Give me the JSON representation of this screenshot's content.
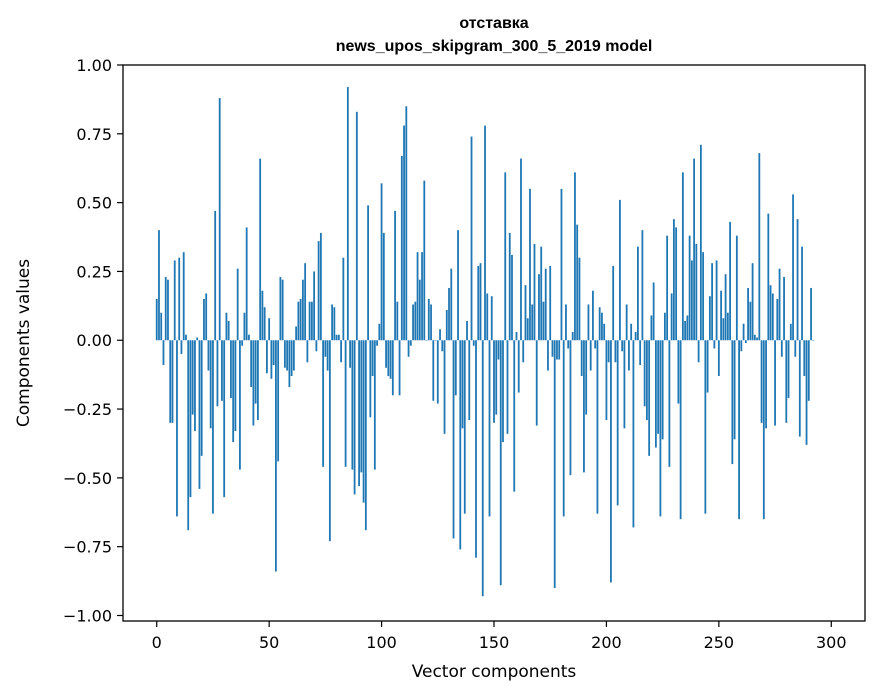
{
  "chart_data": {
    "type": "bar",
    "title": "отставка",
    "subtitle": "news_upos_skipgram_300_5_2019 model",
    "xlabel": "Vector components",
    "ylabel": "Components values",
    "xlim": [
      -15,
      315
    ],
    "ylim": [
      -1.02,
      1.0
    ],
    "xticks": [
      {
        "value": 0,
        "label": "0"
      },
      {
        "value": 50,
        "label": "50"
      },
      {
        "value": 100,
        "label": "100"
      },
      {
        "value": 150,
        "label": "150"
      },
      {
        "value": 200,
        "label": "200"
      },
      {
        "value": 250,
        "label": "250"
      },
      {
        "value": 300,
        "label": "300"
      }
    ],
    "yticks": [
      {
        "value": 1.0,
        "label": "1.00"
      },
      {
        "value": 0.75,
        "label": "0.75"
      },
      {
        "value": 0.5,
        "label": "0.50"
      },
      {
        "value": 0.25,
        "label": "0.25"
      },
      {
        "value": 0.0,
        "label": "0.00"
      },
      {
        "value": -0.25,
        "label": "−0.25"
      },
      {
        "value": -0.5,
        "label": "−0.50"
      },
      {
        "value": -0.75,
        "label": "−0.75"
      },
      {
        "value": -1.0,
        "label": "−1.00"
      }
    ],
    "grid": false,
    "color": "#1f77b4",
    "values": [
      0.15,
      0.4,
      0.1,
      -0.09,
      0.23,
      0.22,
      -0.3,
      -0.3,
      0.29,
      -0.64,
      0.3,
      -0.05,
      0.32,
      0.02,
      -0.69,
      -0.57,
      -0.27,
      -0.33,
      0.01,
      -0.54,
      -0.42,
      0.15,
      0.17,
      -0.11,
      -0.32,
      -0.63,
      0.47,
      -0.24,
      0.88,
      -0.22,
      -0.57,
      0.1,
      0.07,
      -0.21,
      -0.37,
      -0.33,
      0.26,
      -0.47,
      -0.02,
      0.1,
      0.41,
      0.02,
      -0.17,
      -0.31,
      -0.23,
      -0.29,
      0.66,
      0.18,
      0.12,
      -0.12,
      0.08,
      -0.14,
      -0.09,
      -0.84,
      -0.44,
      0.23,
      0.22,
      -0.1,
      -0.11,
      -0.17,
      -0.13,
      -0.11,
      0.05,
      0.14,
      0.15,
      0.22,
      0.28,
      -0.08,
      0.14,
      0.14,
      0.25,
      -0.04,
      0.36,
      0.39,
      -0.46,
      -0.06,
      -0.11,
      -0.73,
      0.13,
      0.12,
      0.02,
      0.02,
      -0.08,
      0.3,
      -0.46,
      0.92,
      -0.1,
      -0.47,
      -0.56,
      0.83,
      -0.53,
      -0.48,
      -0.59,
      -0.69,
      0.49,
      -0.28,
      -0.13,
      -0.47,
      -0.02,
      0.06,
      0.57,
      0.39,
      -0.1,
      -0.13,
      -0.14,
      -0.2,
      0.47,
      0.14,
      -0.2,
      0.67,
      0.78,
      0.85,
      -0.06,
      -0.02,
      0.13,
      0.14,
      0.32,
      0.22,
      0.32,
      0.58,
      0.0,
      0.15,
      0.13,
      -0.22,
      0.0,
      -0.23,
      0.04,
      -0.04,
      -0.34,
      0.11,
      0.19,
      0.26,
      -0.72,
      -0.2,
      0.4,
      -0.76,
      -0.32,
      -0.63,
      0.07,
      -0.29,
      0.74,
      -0.02,
      -0.79,
      0.27,
      0.28,
      -0.93,
      0.78,
      0.17,
      -0.64,
      0.16,
      -0.3,
      -0.27,
      -0.07,
      -0.89,
      -0.37,
      0.61,
      -0.34,
      0.39,
      0.31,
      -0.55,
      0.03,
      -0.19,
      0.66,
      -0.08,
      0.2,
      0.08,
      0.55,
      0.13,
      0.35,
      -0.31,
      0.24,
      0.34,
      0.14,
      0.26,
      -0.11,
      0.27,
      -0.06,
      -0.9,
      -0.07,
      -0.07,
      0.55,
      -0.64,
      0.13,
      -0.03,
      -0.49,
      0.03,
      0.61,
      0.42,
      0.3,
      -0.13,
      -0.48,
      -0.27,
      0.13,
      -0.11,
      0.18,
      -0.03,
      -0.63,
      0.12,
      0.1,
      0.06,
      -0.29,
      -0.08,
      -0.88,
      0.27,
      -0.08,
      -0.6,
      0.51,
      -0.04,
      -0.32,
      0.13,
      -0.11,
      0.06,
      -0.68,
      0.03,
      0.34,
      -0.09,
      0.4,
      -0.24,
      -0.29,
      -0.42,
      0.09,
      0.21,
      -0.39,
      -0.34,
      -0.64,
      -0.36,
      0.1,
      0.38,
      -0.46,
      0.17,
      0.44,
      0.41,
      -0.23,
      -0.65,
      0.61,
      0.07,
      0.09,
      0.38,
      0.29,
      0.66,
      0.35,
      -0.08,
      0.71,
      0.32,
      -0.63,
      -0.19,
      0.16,
      0.28,
      -0.03,
      0.29,
      -0.13,
      0.18,
      0.08,
      0.24,
      0.1,
      0.43,
      -0.45,
      -0.36,
      0.38,
      -0.65,
      -0.04,
      0.06,
      -0.01,
      0.19,
      0.14,
      0.28,
      0.02,
      0.01,
      0.68,
      -0.3,
      -0.65,
      -0.32,
      0.46,
      0.2,
      0.17,
      -0.31,
      0.15,
      0.26,
      -0.06,
      0.23,
      -0.3,
      -0.21,
      0.06,
      0.53,
      -0.06,
      0.44,
      -0.35,
      0.34,
      -0.13,
      -0.38,
      -0.22,
      0.19,
      0.0
    ]
  }
}
